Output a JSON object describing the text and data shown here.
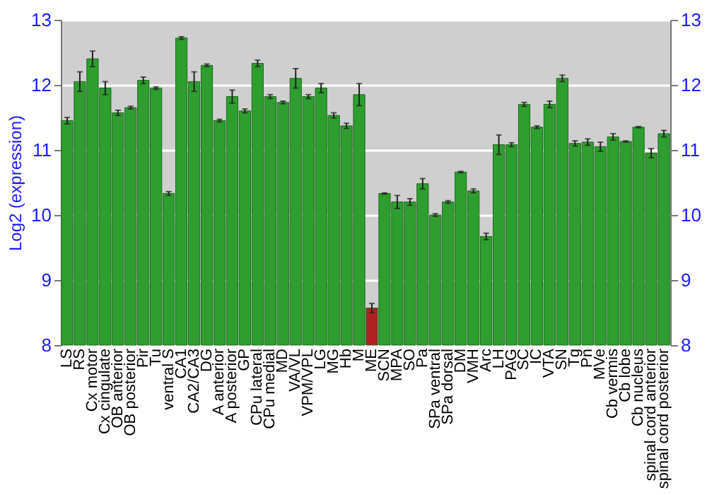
{
  "chart_data": {
    "type": "bar",
    "ylabel": "Log2 (expression)",
    "categories": [
      "LS",
      "RS",
      "Cx motor",
      "Cx cingulate",
      "OB anterior",
      "OB posterior",
      "Pir",
      "Tu",
      "ventral S",
      "CA1",
      "CA2/CA3",
      "DG",
      "A anterior",
      "A posterior",
      "GP",
      "CPu lateral",
      "CPu medial",
      "MD",
      "VA/VL",
      "VPM/VPL",
      "LG",
      "MG",
      "Hb",
      "M",
      "ME",
      "SCN",
      "MPA",
      "SO",
      "Pa",
      "SPa ventral",
      "SPa dorsal",
      "DM",
      "VMH",
      "Arc",
      "LH",
      "PAG",
      "SC",
      "IC",
      "VTA",
      "SN",
      "Tg",
      "Pn",
      "MVe",
      "Cb vermis",
      "Cb lobe",
      "Cb nucleus",
      "spinal cord anterior",
      "spinal cord posterior"
    ],
    "values": [
      11.45,
      12.05,
      12.4,
      11.95,
      11.57,
      11.65,
      12.07,
      11.95,
      10.33,
      12.72,
      12.05,
      12.3,
      11.45,
      11.82,
      11.6,
      12.33,
      11.82,
      11.73,
      12.1,
      11.82,
      11.95,
      11.53,
      11.37,
      11.85,
      8.57,
      10.33,
      10.2,
      10.2,
      10.48,
      10.0,
      10.2,
      10.66,
      10.37,
      9.67,
      11.08,
      11.08,
      11.7,
      11.35,
      11.7,
      12.1,
      11.1,
      11.12,
      11.05,
      11.2,
      11.13,
      11.35,
      10.95,
      11.25
    ],
    "errors": [
      0.05,
      0.15,
      0.12,
      0.1,
      0.04,
      0.02,
      0.05,
      0.02,
      0.03,
      0.02,
      0.15,
      0.02,
      0.02,
      0.1,
      0.03,
      0.05,
      0.03,
      0.02,
      0.15,
      0.03,
      0.07,
      0.04,
      0.04,
      0.17,
      0.07,
      0.01,
      0.1,
      0.05,
      0.08,
      0.02,
      0.02,
      0.01,
      0.03,
      0.05,
      0.15,
      0.03,
      0.03,
      0.02,
      0.05,
      0.05,
      0.04,
      0.05,
      0.07,
      0.05,
      0.01,
      0.01,
      0.07,
      0.05
    ],
    "colors": [
      "#2e9e2e",
      "#2e9e2e",
      "#2e9e2e",
      "#2e9e2e",
      "#2e9e2e",
      "#2e9e2e",
      "#2e9e2e",
      "#2e9e2e",
      "#2e9e2e",
      "#2e9e2e",
      "#2e9e2e",
      "#2e9e2e",
      "#2e9e2e",
      "#2e9e2e",
      "#2e9e2e",
      "#2e9e2e",
      "#2e9e2e",
      "#2e9e2e",
      "#2e9e2e",
      "#2e9e2e",
      "#2e9e2e",
      "#2e9e2e",
      "#2e9e2e",
      "#2e9e2e",
      "#b02020",
      "#2e9e2e",
      "#2e9e2e",
      "#2e9e2e",
      "#2e9e2e",
      "#2e9e2e",
      "#2e9e2e",
      "#2e9e2e",
      "#2e9e2e",
      "#2e9e2e",
      "#2e9e2e",
      "#2e9e2e",
      "#2e9e2e",
      "#2e9e2e",
      "#2e9e2e",
      "#2e9e2e",
      "#2e9e2e",
      "#2e9e2e",
      "#2e9e2e",
      "#2e9e2e",
      "#2e9e2e",
      "#2e9e2e",
      "#2e9e2e",
      "#2e9e2e"
    ],
    "ylim": [
      8,
      13
    ],
    "yticks": [
      8,
      9,
      10,
      11,
      12,
      13
    ],
    "y2lim": [
      8,
      13
    ],
    "y2ticks": [
      8,
      9,
      10,
      11,
      12,
      13
    ],
    "grid": "y"
  }
}
